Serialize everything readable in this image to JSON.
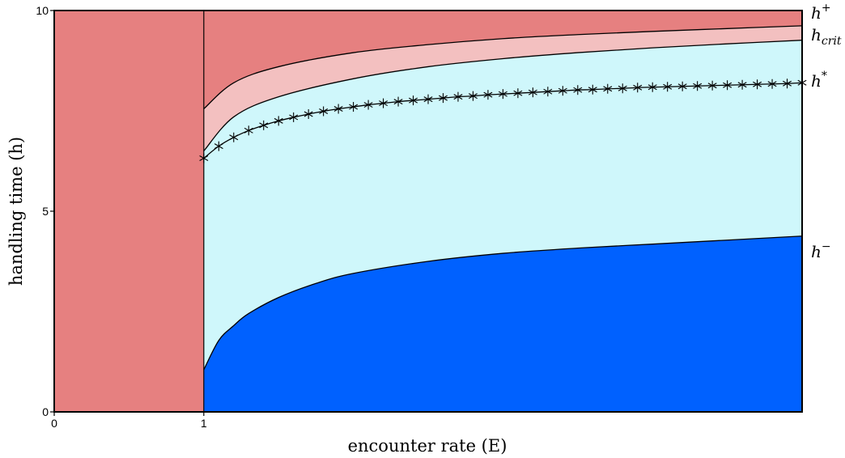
{
  "chart_data": {
    "type": "area",
    "xlabel": "encounter rate (E)",
    "ylabel": "handling time (h)",
    "xlim": [
      0,
      5
    ],
    "ylim": [
      0,
      10
    ],
    "x_ticks": [
      0,
      1
    ],
    "y_ticks": [
      0,
      5,
      10
    ],
    "grid": false,
    "colors": {
      "above_h_plus": "#e68080",
      "left_region": "#e68080",
      "between_h_plus_and_h_crit": "#f3c0c0",
      "between_h_crit_and_h_minus": "#cff7fb",
      "below_h_minus": "#0061ff"
    },
    "series": [
      {
        "name": "h+",
        "label_main": "h",
        "label_script": "+",
        "x": [
          1.0,
          1.2,
          1.5,
          2.0,
          2.5,
          3.0,
          3.5,
          4.0,
          4.5,
          5.0
        ],
        "values": [
          7.55,
          8.2,
          8.6,
          8.95,
          9.15,
          9.3,
          9.4,
          9.48,
          9.55,
          9.62
        ]
      },
      {
        "name": "hcrit",
        "label_main": "h",
        "label_script": "crit",
        "x": [
          1.0,
          1.2,
          1.5,
          2.0,
          2.5,
          3.0,
          3.5,
          4.0,
          4.5,
          5.0
        ],
        "values": [
          6.5,
          7.35,
          7.85,
          8.3,
          8.6,
          8.8,
          8.95,
          9.07,
          9.17,
          9.26
        ]
      },
      {
        "name": "h*",
        "label_main": "h",
        "label_script": "*",
        "marker": "asterisk",
        "x": [
          1.0,
          1.1,
          1.2,
          1.3,
          1.4,
          1.5,
          1.6,
          1.7,
          1.8,
          1.9,
          2.0,
          2.1,
          2.2,
          2.3,
          2.4,
          2.5,
          2.6,
          2.7,
          2.8,
          2.9,
          3.0,
          3.1,
          3.2,
          3.3,
          3.4,
          3.5,
          3.6,
          3.7,
          3.8,
          3.9,
          4.0,
          4.1,
          4.2,
          4.3,
          4.4,
          4.5,
          4.6,
          4.7,
          4.8,
          4.9,
          5.0
        ],
        "values": [
          6.32,
          6.62,
          6.84,
          7.01,
          7.14,
          7.25,
          7.34,
          7.42,
          7.49,
          7.55,
          7.6,
          7.65,
          7.69,
          7.73,
          7.76,
          7.79,
          7.82,
          7.85,
          7.87,
          7.9,
          7.92,
          7.94,
          7.96,
          7.98,
          8.0,
          8.02,
          8.03,
          8.05,
          8.06,
          8.08,
          8.09,
          8.1,
          8.11,
          8.12,
          8.13,
          8.14,
          8.15,
          8.16,
          8.17,
          8.18,
          8.2
        ]
      },
      {
        "name": "h-",
        "label_main": "h",
        "label_script": "−",
        "x": [
          1.0,
          1.1,
          1.2,
          1.3,
          1.5,
          1.75,
          2.0,
          2.5,
          3.0,
          3.5,
          4.0,
          4.5,
          5.0
        ],
        "values": [
          1.05,
          1.78,
          2.15,
          2.45,
          2.85,
          3.2,
          3.45,
          3.75,
          3.95,
          4.08,
          4.18,
          4.28,
          4.38
        ]
      }
    ]
  }
}
